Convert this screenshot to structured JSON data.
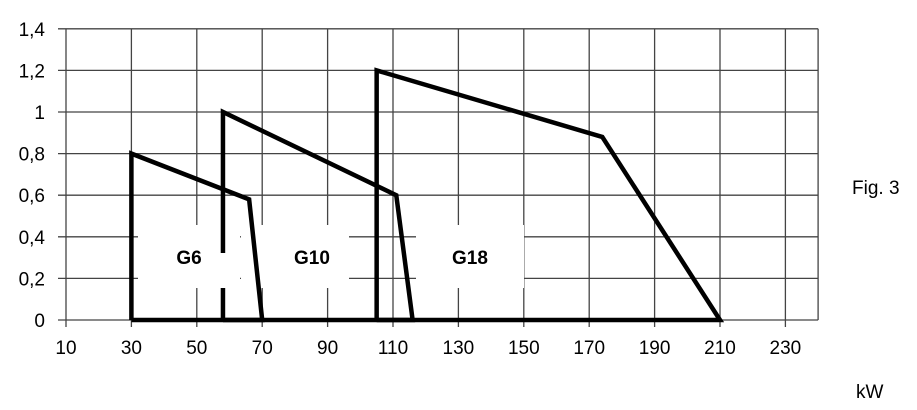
{
  "chart_data": {
    "type": "line",
    "title": "",
    "figure_label": "Fig. 3",
    "xlabel": "kW",
    "ylabel": "",
    "xlim": [
      10,
      240
    ],
    "ylim": [
      0,
      1.4
    ],
    "grid": true,
    "x_ticks": [
      "10",
      "30",
      "50",
      "70",
      "90",
      "110",
      "130",
      "150",
      "170",
      "190",
      "210",
      "230"
    ],
    "y_ticks": [
      "0",
      "0,2",
      "0,4",
      "0,6",
      "0,8",
      "1",
      "1,2",
      "1,4"
    ],
    "series": [
      {
        "name": "G6",
        "label_pos": [
          44,
          0.4
        ],
        "points": [
          [
            30,
            0
          ],
          [
            30,
            0.8
          ],
          [
            66,
            0.58
          ],
          [
            70,
            0
          ],
          [
            30,
            0
          ]
        ]
      },
      {
        "name": "G10",
        "label_pos": [
          88,
          0.4
        ],
        "points": [
          [
            58,
            0
          ],
          [
            58,
            1.0
          ],
          [
            111,
            0.6
          ],
          [
            116,
            0
          ],
          [
            58,
            0
          ]
        ]
      },
      {
        "name": "G18",
        "label_pos": [
          150,
          0.4
        ],
        "points": [
          [
            105,
            0
          ],
          [
            105,
            1.2
          ],
          [
            174,
            0.88
          ],
          [
            210,
            0
          ],
          [
            105,
            0
          ]
        ]
      }
    ],
    "legend": "none (series labelled inline)"
  },
  "labels": {
    "figure": "Fig. 3",
    "x_unit": "kW"
  }
}
